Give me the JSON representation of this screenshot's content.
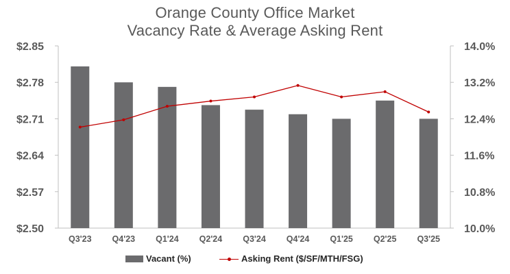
{
  "chart_data": {
    "type": "bar+line",
    "title": "Orange County Office Market",
    "subtitle": "Vacancy Rate & Average Asking Rent",
    "categories": [
      "Q3'23",
      "Q4'23",
      "Q1'24",
      "Q2'24",
      "Q3'24",
      "Q4'24",
      "Q1'25",
      "Q2'25",
      "Q3'25"
    ],
    "series": [
      {
        "name": "Vacant (%)",
        "type": "bar",
        "axis": "right",
        "color": "#6b6b6d",
        "values": [
          13.55,
          13.2,
          13.1,
          12.7,
          12.6,
          12.5,
          12.4,
          12.8,
          12.4
        ]
      },
      {
        "name": "Asking Rent ($/SF/MTH/FSG)",
        "type": "line",
        "axis": "left",
        "color": "#c00000",
        "values": [
          2.694,
          2.708,
          2.734,
          2.744,
          2.752,
          2.774,
          2.752,
          2.762,
          2.723
        ]
      }
    ],
    "y_left": {
      "ylim": [
        2.5,
        2.85
      ],
      "ticks": [
        "$2.85",
        "$2.78",
        "$2.71",
        "$2.64",
        "$2.57",
        "$2.50"
      ]
    },
    "y_right": {
      "ylim": [
        10.0,
        14.0
      ],
      "ticks": [
        "14.0%",
        "13.2%",
        "12.4%",
        "11.6%",
        "10.8%",
        "10.0%"
      ]
    },
    "grid": false,
    "legend": "bottom-center"
  },
  "legend": {
    "bar_label": "Vacant (%)",
    "line_label": "Asking Rent ($/SF/MTH/FSG)"
  }
}
